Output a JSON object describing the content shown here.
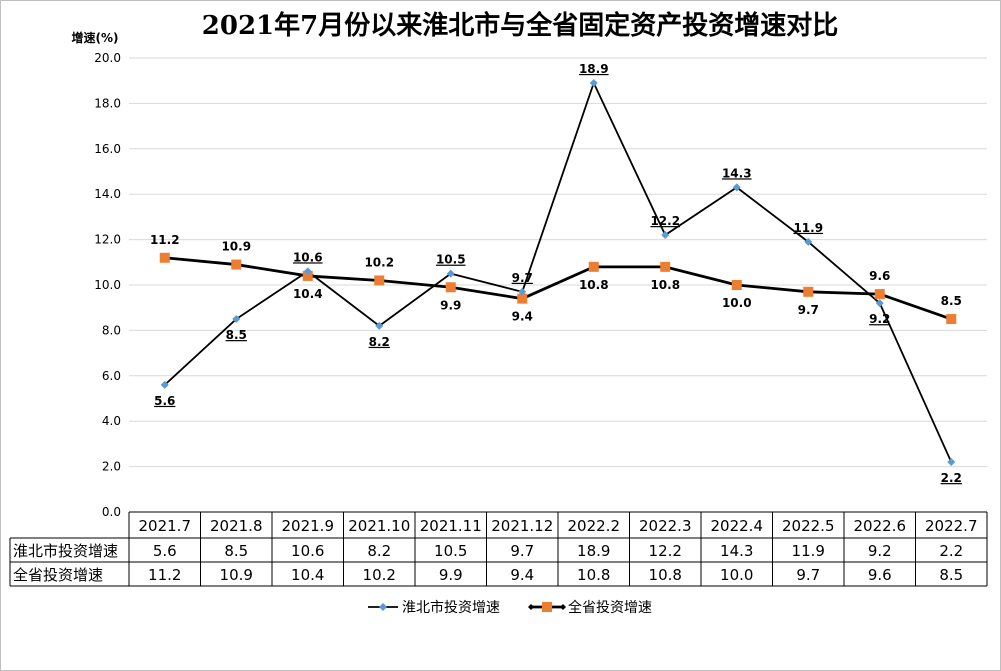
{
  "chart_data": {
    "type": "line",
    "title": "2021年7月份以来淮北市与全省固定资产投资增速对比",
    "ylabel": "增速(%)",
    "ylim": [
      0,
      20
    ],
    "y_ticks": [
      "0.0",
      "2.0",
      "4.0",
      "6.0",
      "8.0",
      "10.0",
      "12.0",
      "14.0",
      "16.0",
      "18.0",
      "20.0"
    ],
    "grid": true,
    "legend_position": "bottom",
    "categories": [
      "2021.7",
      "2021.8",
      "2021.9",
      "2021.10",
      "2021.11",
      "2021.12",
      "2022.2",
      "2022.3",
      "2022.4",
      "2022.5",
      "2022.6",
      "2022.7"
    ],
    "series": [
      {
        "name": "淮北市投资增速",
        "color": "#5b9bd5",
        "line_color": "#000000",
        "marker": "diamond",
        "values": [
          5.6,
          8.5,
          10.6,
          8.2,
          10.5,
          9.7,
          18.9,
          12.2,
          14.3,
          11.9,
          9.2,
          2.2
        ],
        "labels": [
          "5.6",
          "8.5",
          "10.6",
          "8.2",
          "10.5",
          "9.7",
          "18.9",
          "12.2",
          "14.3",
          "11.9",
          "9.2",
          "2.2"
        ]
      },
      {
        "name": "全省投资增速",
        "color": "#ed7d31",
        "line_color": "#000000",
        "marker": "square",
        "values": [
          11.2,
          10.9,
          10.4,
          10.2,
          9.9,
          9.4,
          10.8,
          10.8,
          10.0,
          9.7,
          9.6,
          8.5
        ],
        "labels": [
          "11.2",
          "10.9",
          "10.4",
          "10.2",
          "9.9",
          "9.4",
          "10.8",
          "10.8",
          "10.0",
          "9.7",
          "9.6",
          "8.5"
        ]
      }
    ]
  }
}
